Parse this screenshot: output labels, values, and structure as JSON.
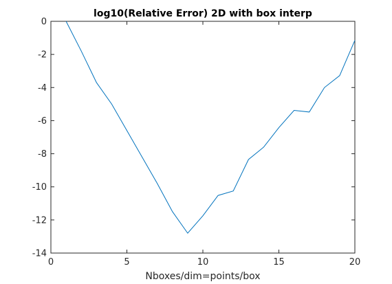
{
  "chart_data": {
    "type": "line",
    "title": "log10(Relative Error) 2D with box interp",
    "xlabel": "Nboxes/dim=points/box",
    "ylabel": "",
    "xlim": [
      0,
      20
    ],
    "ylim": [
      -14,
      0
    ],
    "xticks": [
      0,
      5,
      10,
      15,
      20
    ],
    "yticks": [
      0,
      -2,
      -4,
      -6,
      -8,
      -10,
      -12,
      -14
    ],
    "grid": false,
    "line_color": "#0072BD",
    "series": [
      {
        "x": [
          1,
          2,
          3,
          4,
          5,
          6,
          7,
          8,
          9,
          10,
          11,
          12,
          13,
          14,
          15,
          16,
          17,
          18,
          19,
          20
        ],
        "values": [
          0.0,
          -1.8,
          -3.7,
          -5.0,
          -6.6,
          -8.2,
          -9.8,
          -11.5,
          -12.8,
          -11.75,
          -10.52,
          -10.25,
          -8.35,
          -7.6,
          -6.42,
          -5.38,
          -5.48,
          -4.0,
          -3.28,
          -1.15
        ]
      }
    ]
  }
}
